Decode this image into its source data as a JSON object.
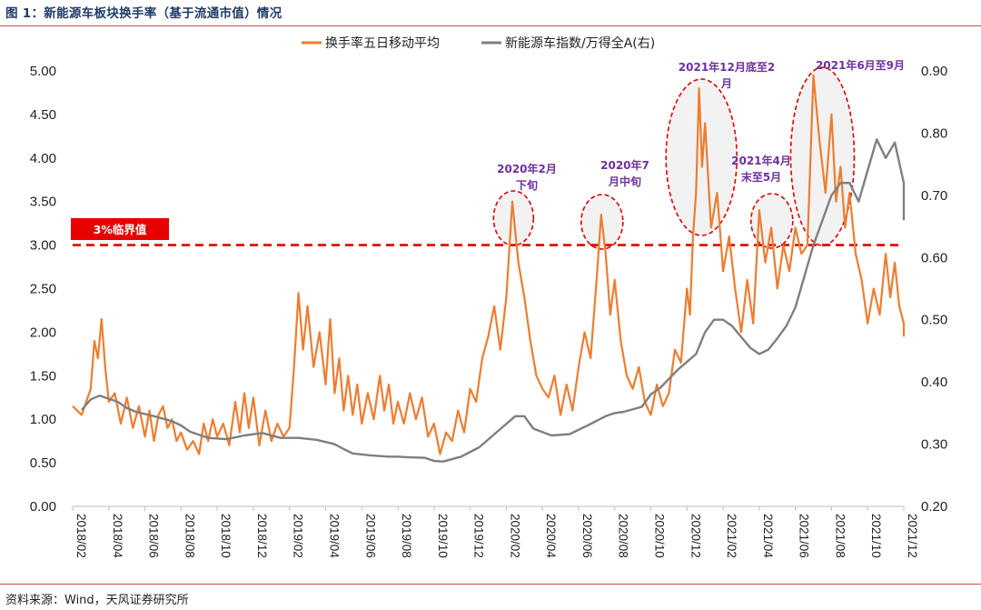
{
  "header": {
    "title": "图 1：新能源车板块换手率（基于流通市值）情况"
  },
  "footer": {
    "source": "资料来源：Wind，天风证券研究所"
  },
  "colors": {
    "turnover": "#ed7d31",
    "index": "#7f7f7f",
    "threshold": "#e60000",
    "annotation": "#7030a0",
    "ellipse_stroke": "#e60000",
    "ellipse_fill": "#f2f2f2"
  },
  "chart_data": {
    "type": "line",
    "title": "",
    "legend_position": "top-center",
    "grid": false,
    "y_left": {
      "lim": [
        0,
        5
      ],
      "ticks": [
        "0.00",
        "0.50",
        "1.00",
        "1.50",
        "2.00",
        "2.50",
        "3.00",
        "3.50",
        "4.00",
        "4.50",
        "5.00"
      ]
    },
    "y_right": {
      "lim": [
        0.2,
        0.9
      ],
      "ticks": [
        "0.20",
        "0.30",
        "0.40",
        "0.50",
        "0.60",
        "0.70",
        "0.80",
        "0.90"
      ]
    },
    "x_ticks": [
      "2018/02",
      "2018/04",
      "2018/06",
      "2018/08",
      "2018/10",
      "2018/12",
      "2019/02",
      "2019/04",
      "2019/06",
      "2019/08",
      "2019/10",
      "2019/12",
      "2020/02",
      "2020/04",
      "2020/06",
      "2020/08",
      "2020/10",
      "2020/12",
      "2021/02",
      "2021/04",
      "2021/06",
      "2021/08",
      "2021/10",
      "2021/12"
    ],
    "threshold": {
      "value": 3.0,
      "label": "3%临界值"
    },
    "series": [
      {
        "name": "换手率五日移动平均",
        "axis": "left",
        "points": [
          [
            "2018/02",
            1.15
          ],
          [
            "2018/02",
            1.05
          ],
          [
            "2018/03",
            1.35
          ],
          [
            "2018/03",
            1.9
          ],
          [
            "2018/03",
            1.7
          ],
          [
            "2018/03",
            2.15
          ],
          [
            "2018/03",
            1.6
          ],
          [
            "2018/04",
            1.2
          ],
          [
            "2018/04",
            1.3
          ],
          [
            "2018/04",
            0.95
          ],
          [
            "2018/05",
            1.25
          ],
          [
            "2018/05",
            0.9
          ],
          [
            "2018/05",
            1.15
          ],
          [
            "2018/06",
            0.8
          ],
          [
            "2018/06",
            1.1
          ],
          [
            "2018/06",
            0.75
          ],
          [
            "2018/06",
            1.05
          ],
          [
            "2018/07",
            1.15
          ],
          [
            "2018/07",
            0.9
          ],
          [
            "2018/07",
            1.0
          ],
          [
            "2018/07",
            0.75
          ],
          [
            "2018/08",
            0.85
          ],
          [
            "2018/08",
            0.65
          ],
          [
            "2018/08",
            0.75
          ],
          [
            "2018/09",
            0.6
          ],
          [
            "2018/09",
            0.95
          ],
          [
            "2018/09",
            0.75
          ],
          [
            "2018/09",
            1.0
          ],
          [
            "2018/10",
            0.8
          ],
          [
            "2018/10",
            0.95
          ],
          [
            "2018/10",
            0.7
          ],
          [
            "2018/11",
            1.2
          ],
          [
            "2018/11",
            0.85
          ],
          [
            "2018/11",
            1.3
          ],
          [
            "2018/11",
            0.9
          ],
          [
            "2018/12",
            1.25
          ],
          [
            "2018/12",
            0.7
          ],
          [
            "2018/12",
            1.1
          ],
          [
            "2019/01",
            0.75
          ],
          [
            "2019/01",
            0.95
          ],
          [
            "2019/01",
            0.8
          ],
          [
            "2019/02",
            0.9
          ],
          [
            "2019/02",
            1.6
          ],
          [
            "2019/02",
            2.45
          ],
          [
            "2019/02",
            1.8
          ],
          [
            "2019/03",
            2.3
          ],
          [
            "2019/03",
            1.6
          ],
          [
            "2019/03",
            2.0
          ],
          [
            "2019/04",
            1.4
          ],
          [
            "2019/04",
            2.15
          ],
          [
            "2019/04",
            1.3
          ],
          [
            "2019/04",
            1.7
          ],
          [
            "2019/05",
            1.1
          ],
          [
            "2019/05",
            1.5
          ],
          [
            "2019/05",
            1.05
          ],
          [
            "2019/05",
            1.4
          ],
          [
            "2019/06",
            0.95
          ],
          [
            "2019/06",
            1.3
          ],
          [
            "2019/06",
            1.0
          ],
          [
            "2019/07",
            1.5
          ],
          [
            "2019/07",
            1.1
          ],
          [
            "2019/07",
            1.4
          ],
          [
            "2019/07",
            0.95
          ],
          [
            "2019/08",
            1.2
          ],
          [
            "2019/08",
            0.95
          ],
          [
            "2019/08",
            1.3
          ],
          [
            "2019/09",
            1.0
          ],
          [
            "2019/09",
            1.25
          ],
          [
            "2019/09",
            0.8
          ],
          [
            "2019/10",
            0.95
          ],
          [
            "2019/10",
            0.6
          ],
          [
            "2019/10",
            0.85
          ],
          [
            "2019/11",
            0.75
          ],
          [
            "2019/11",
            1.1
          ],
          [
            "2019/11",
            0.85
          ],
          [
            "2019/12",
            1.35
          ],
          [
            "2019/12",
            1.2
          ],
          [
            "2019/12",
            1.7
          ],
          [
            "2020/01",
            1.95
          ],
          [
            "2020/01",
            2.3
          ],
          [
            "2020/01",
            1.8
          ],
          [
            "2020/02",
            2.4
          ],
          [
            "2020/02",
            3.5
          ],
          [
            "2020/02",
            2.8
          ],
          [
            "2020/03",
            2.4
          ],
          [
            "2020/03",
            1.9
          ],
          [
            "2020/03",
            1.5
          ],
          [
            "2020/04",
            1.35
          ],
          [
            "2020/04",
            1.25
          ],
          [
            "2020/04",
            1.5
          ],
          [
            "2020/05",
            1.05
          ],
          [
            "2020/05",
            1.4
          ],
          [
            "2020/05",
            1.1
          ],
          [
            "2020/06",
            1.6
          ],
          [
            "2020/06",
            2.0
          ],
          [
            "2020/06",
            1.7
          ],
          [
            "2020/07",
            2.6
          ],
          [
            "2020/07",
            3.35
          ],
          [
            "2020/07",
            2.9
          ],
          [
            "2020/07",
            2.2
          ],
          [
            "2020/08",
            2.6
          ],
          [
            "2020/08",
            1.9
          ],
          [
            "2020/08",
            1.5
          ],
          [
            "2020/09",
            1.35
          ],
          [
            "2020/09",
            1.6
          ],
          [
            "2020/09",
            1.2
          ],
          [
            "2020/10",
            1.05
          ],
          [
            "2020/10",
            1.4
          ],
          [
            "2020/10",
            1.15
          ],
          [
            "2020/11",
            1.3
          ],
          [
            "2020/11",
            1.8
          ],
          [
            "2020/11",
            1.65
          ],
          [
            "2020/12",
            2.5
          ],
          [
            "2020/12",
            2.2
          ],
          [
            "2020/12",
            3.1
          ],
          [
            "2020/12",
            3.6
          ],
          [
            "2020/12",
            4.8
          ],
          [
            "2020/12",
            3.9
          ],
          [
            "2021/01",
            4.4
          ],
          [
            "2021/01",
            3.2
          ],
          [
            "2021/01",
            3.6
          ],
          [
            "2021/02",
            2.7
          ],
          [
            "2021/02",
            3.1
          ],
          [
            "2021/02",
            2.5
          ],
          [
            "2021/03",
            2.0
          ],
          [
            "2021/03",
            2.6
          ],
          [
            "2021/03",
            2.1
          ],
          [
            "2021/04",
            3.4
          ],
          [
            "2021/04",
            2.8
          ],
          [
            "2021/04",
            3.2
          ],
          [
            "2021/05",
            2.5
          ],
          [
            "2021/05",
            3.0
          ],
          [
            "2021/05",
            2.7
          ],
          [
            "2021/06",
            3.2
          ],
          [
            "2021/06",
            2.9
          ],
          [
            "2021/06",
            3.0
          ],
          [
            "2021/07",
            4.95
          ],
          [
            "2021/07",
            4.2
          ],
          [
            "2021/07",
            3.6
          ],
          [
            "2021/08",
            4.5
          ],
          [
            "2021/08",
            3.5
          ],
          [
            "2021/08",
            3.9
          ],
          [
            "2021/08",
            3.2
          ],
          [
            "2021/09",
            3.6
          ],
          [
            "2021/09",
            2.9
          ],
          [
            "2021/09",
            2.6
          ],
          [
            "2021/10",
            2.1
          ],
          [
            "2021/10",
            2.5
          ],
          [
            "2021/10",
            2.2
          ],
          [
            "2021/11",
            2.9
          ],
          [
            "2021/11",
            2.4
          ],
          [
            "2021/11",
            2.8
          ],
          [
            "2021/11",
            2.3
          ],
          [
            "2021/12",
            2.1
          ],
          [
            "2021/12",
            1.95
          ]
        ]
      },
      {
        "name": "新能源车指数/万得全A(右)",
        "axis": "right",
        "points": [
          [
            "2018/02",
            0.355
          ],
          [
            "2018/03",
            0.372
          ],
          [
            "2018/03",
            0.378
          ],
          [
            "2018/04",
            0.368
          ],
          [
            "2018/05",
            0.358
          ],
          [
            "2018/05",
            0.352
          ],
          [
            "2018/06",
            0.345
          ],
          [
            "2018/07",
            0.337
          ],
          [
            "2018/08",
            0.33
          ],
          [
            "2018/08",
            0.32
          ],
          [
            "2018/09",
            0.31
          ],
          [
            "2018/10",
            0.308
          ],
          [
            "2018/11",
            0.314
          ],
          [
            "2018/12",
            0.318
          ],
          [
            "2019/01",
            0.31
          ],
          [
            "2019/02",
            0.31
          ],
          [
            "2019/03",
            0.307
          ],
          [
            "2019/04",
            0.3
          ],
          [
            "2019/05",
            0.292
          ],
          [
            "2019/05",
            0.285
          ],
          [
            "2019/06",
            0.282
          ],
          [
            "2019/07",
            0.28
          ],
          [
            "2019/08",
            0.28
          ],
          [
            "2019/08",
            0.279
          ],
          [
            "2019/09",
            0.278
          ],
          [
            "2019/10",
            0.273
          ],
          [
            "2019/10",
            0.272
          ],
          [
            "2019/11",
            0.28
          ],
          [
            "2019/12",
            0.295
          ],
          [
            "2020/01",
            0.32
          ],
          [
            "2020/02",
            0.345
          ],
          [
            "2020/03",
            0.345
          ],
          [
            "2020/03",
            0.325
          ],
          [
            "2020/04",
            0.314
          ],
          [
            "2020/05",
            0.316
          ],
          [
            "2020/06",
            0.33
          ],
          [
            "2020/07",
            0.345
          ],
          [
            "2020/08",
            0.35
          ],
          [
            "2020/08",
            0.352
          ],
          [
            "2020/09",
            0.36
          ],
          [
            "2020/10",
            0.38
          ],
          [
            "2020/10",
            0.39
          ],
          [
            "2020/11",
            0.42
          ],
          [
            "2020/12",
            0.445
          ],
          [
            "2021/01",
            0.48
          ],
          [
            "2021/01",
            0.5
          ],
          [
            "2021/02",
            0.5
          ],
          [
            "2021/02",
            0.49
          ],
          [
            "2021/03",
            0.455
          ],
          [
            "2021/04",
            0.445
          ],
          [
            "2021/04",
            0.452
          ],
          [
            "2021/05",
            0.47
          ],
          [
            "2021/05",
            0.49
          ],
          [
            "2021/06",
            0.52
          ],
          [
            "2021/06",
            0.57
          ],
          [
            "2021/07",
            0.62
          ],
          [
            "2021/07",
            0.66
          ],
          [
            "2021/08",
            0.7
          ],
          [
            "2021/08",
            0.72
          ],
          [
            "2021/09",
            0.72
          ],
          [
            "2021/09",
            0.69
          ],
          [
            "2021/10",
            0.74
          ],
          [
            "2021/10",
            0.79
          ],
          [
            "2021/11",
            0.76
          ],
          [
            "2021/11",
            0.785
          ],
          [
            "2021/12",
            0.72
          ],
          [
            "2021/12",
            0.66
          ]
        ]
      }
    ],
    "annotations": [
      {
        "lines": [
          "2020年2月",
          "下旬"
        ],
        "at": "2020/02"
      },
      {
        "lines": [
          "2020年7",
          "月中旬"
        ],
        "at": "2020/07"
      },
      {
        "lines": [
          "2021年12月底至2",
          "月"
        ],
        "at": "2020/12"
      },
      {
        "lines": [
          "2021年4月",
          "末至5月"
        ],
        "at": "2021/04"
      },
      {
        "lines": [
          "2021年6月至9月"
        ],
        "at": "2021/07"
      }
    ]
  }
}
